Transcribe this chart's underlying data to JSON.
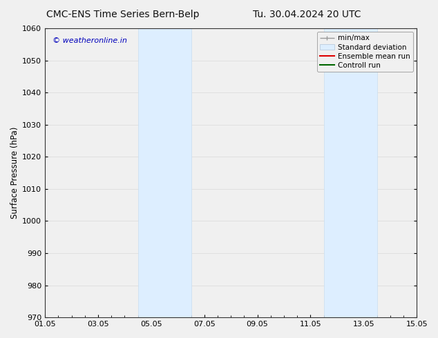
{
  "title_left": "CMC-ENS Time Series Bern-Belp",
  "title_right": "Tu. 30.04.2024 20 UTC",
  "ylabel": "Surface Pressure (hPa)",
  "ylim": [
    970,
    1060
  ],
  "yticks": [
    970,
    980,
    990,
    1000,
    1010,
    1020,
    1030,
    1040,
    1050,
    1060
  ],
  "xlim_start": 0,
  "xlim_end": 14,
  "xtick_labels": [
    "01.05",
    "03.05",
    "05.05",
    "07.05",
    "09.05",
    "11.05",
    "13.05",
    "15.05"
  ],
  "xtick_positions": [
    0,
    2,
    4,
    6,
    8,
    10,
    12,
    14
  ],
  "shaded_bands": [
    {
      "x_start": 3.5,
      "x_end": 5.5
    },
    {
      "x_start": 10.5,
      "x_end": 12.5
    }
  ],
  "shaded_color": "#ddeeff",
  "shaded_edge_color": "#c8ddef",
  "watermark_text": "© weatheronline.in",
  "watermark_color": "#0000bb",
  "bg_color": "#f0f0f0",
  "plot_bg_color": "#f0f0f0",
  "grid_color": "#dddddd",
  "title_fontsize": 10,
  "axis_fontsize": 8.5,
  "tick_fontsize": 8,
  "legend_fontsize": 7.5
}
